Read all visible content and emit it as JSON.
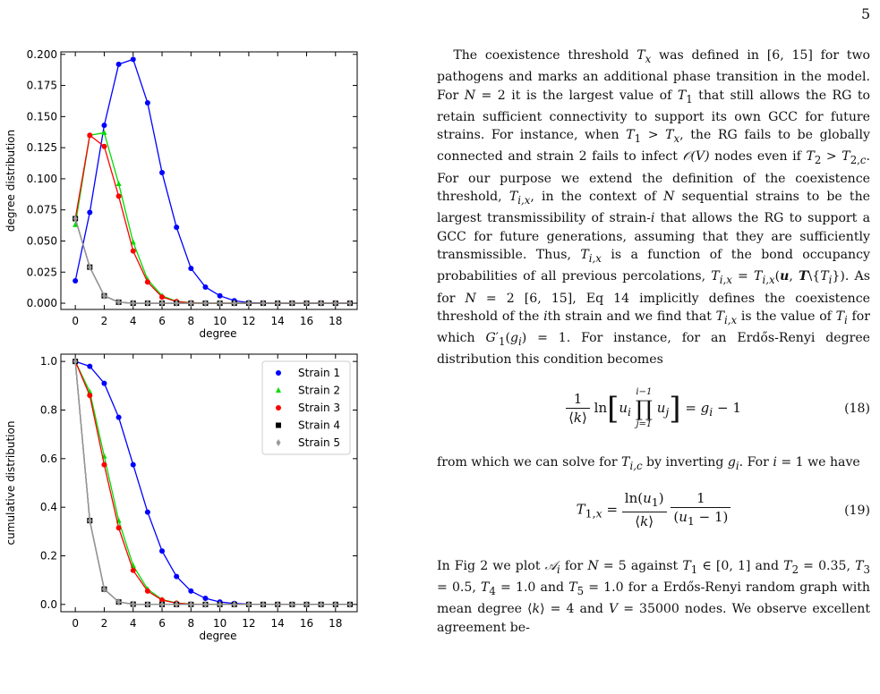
{
  "page": {
    "number": "5"
  },
  "chart_data": [
    {
      "type": "line",
      "xlabel": "degree",
      "ylabel": "degree distribution",
      "xlim": [
        -1,
        19.5
      ],
      "ylim": [
        -0.005,
        0.202
      ],
      "x_ticks": [
        0,
        2,
        4,
        6,
        8,
        10,
        12,
        14,
        16,
        18
      ],
      "y_ticks": [
        0.0,
        0.025,
        0.05,
        0.075,
        0.1,
        0.125,
        0.15,
        0.175,
        0.2
      ],
      "y_tick_labels": [
        "0.000",
        "0.025",
        "0.050",
        "0.075",
        "0.100",
        "0.125",
        "0.150",
        "0.175",
        "0.200"
      ],
      "grid": false,
      "x": [
        0,
        1,
        2,
        3,
        4,
        5,
        6,
        7,
        8,
        9,
        10,
        11,
        12,
        13,
        14,
        15,
        16,
        17,
        18,
        19
      ],
      "series": [
        {
          "name": "Strain 1",
          "color": "#0000ff",
          "marker": "circle",
          "values": [
            0.018,
            0.073,
            0.143,
            0.192,
            0.196,
            0.161,
            0.105,
            0.061,
            0.028,
            0.013,
            0.006,
            0.002,
            0.0005,
            0.0002,
            0,
            0,
            0,
            0,
            0,
            0
          ]
        },
        {
          "name": "Strain 2",
          "color": "#00dd00",
          "marker": "triangle",
          "values": [
            0.063,
            0.135,
            0.137,
            0.096,
            0.049,
            0.019,
            0.006,
            0.0015,
            0.0004,
            0,
            0,
            0,
            0,
            0,
            0,
            0,
            0,
            0,
            0,
            0
          ]
        },
        {
          "name": "Strain 3",
          "color": "#ff0000",
          "marker": "circle",
          "values": [
            0.068,
            0.135,
            0.126,
            0.086,
            0.042,
            0.017,
            0.005,
            0.0013,
            0.0003,
            0,
            0,
            0,
            0,
            0,
            0,
            0,
            0,
            0,
            0,
            0
          ]
        },
        {
          "name": "Strain 4",
          "color": "#000000",
          "marker": "square",
          "values": [
            0.068,
            0.029,
            0.006,
            0.0008,
            0,
            0,
            0,
            0,
            0,
            0,
            0,
            0,
            0,
            0,
            0,
            0,
            0,
            0,
            0,
            0
          ]
        },
        {
          "name": "Strain 5",
          "color": "#999999",
          "marker": "diamond",
          "values": [
            0.068,
            0.029,
            0.006,
            0.0008,
            0,
            0,
            0,
            0,
            0,
            0,
            0,
            0,
            0,
            0,
            0,
            0,
            0,
            0,
            0,
            0
          ]
        }
      ]
    },
    {
      "type": "line",
      "xlabel": "degree",
      "ylabel": "cumulative distribution",
      "xlim": [
        -1,
        19.5
      ],
      "ylim": [
        -0.03,
        1.03
      ],
      "x_ticks": [
        0,
        2,
        4,
        6,
        8,
        10,
        12,
        14,
        16,
        18
      ],
      "y_ticks": [
        0.0,
        0.2,
        0.4,
        0.6,
        0.8,
        1.0
      ],
      "y_tick_labels": [
        "0.0",
        "0.2",
        "0.4",
        "0.6",
        "0.8",
        "1.0"
      ],
      "grid": false,
      "legend_position": "top-right",
      "x": [
        0,
        1,
        2,
        3,
        4,
        5,
        6,
        7,
        8,
        9,
        10,
        11,
        12,
        13,
        14,
        15,
        16,
        17,
        18,
        19
      ],
      "series": [
        {
          "name": "Strain 1",
          "color": "#0000ff",
          "marker": "circle",
          "values": [
            1.0,
            0.98,
            0.91,
            0.77,
            0.575,
            0.38,
            0.22,
            0.115,
            0.055,
            0.025,
            0.01,
            0.004,
            0.001,
            0,
            0,
            0,
            0,
            0,
            0,
            0
          ]
        },
        {
          "name": "Strain 2",
          "color": "#00dd00",
          "marker": "triangle",
          "values": [
            1.0,
            0.875,
            0.61,
            0.345,
            0.16,
            0.063,
            0.02,
            0.006,
            0.0015,
            0,
            0,
            0,
            0,
            0,
            0,
            0,
            0,
            0,
            0,
            0
          ]
        },
        {
          "name": "Strain 3",
          "color": "#ff0000",
          "marker": "circle",
          "values": [
            1.0,
            0.86,
            0.575,
            0.315,
            0.14,
            0.055,
            0.018,
            0.005,
            0.001,
            0,
            0,
            0,
            0,
            0,
            0,
            0,
            0,
            0,
            0,
            0
          ]
        },
        {
          "name": "Strain 4",
          "color": "#000000",
          "marker": "square",
          "values": [
            1.0,
            0.345,
            0.063,
            0.01,
            0.001,
            0,
            0,
            0,
            0,
            0,
            0,
            0,
            0,
            0,
            0,
            0,
            0,
            0,
            0,
            0
          ]
        },
        {
          "name": "Strain 5",
          "color": "#999999",
          "marker": "diamond",
          "values": [
            1.0,
            0.345,
            0.063,
            0.01,
            0.001,
            0,
            0,
            0,
            0,
            0,
            0,
            0,
            0,
            0,
            0,
            0,
            0,
            0,
            0,
            0
          ]
        }
      ]
    }
  ],
  "text": {
    "p1_a": "The coexistence threshold ",
    "p1_b": " was defined in [6, 15] for two pathogens and marks an additional phase transition in the model. For ",
    "p1_c": " it is the largest value of ",
    "p1_d": " that still allows the RG to retain sufficient connectivity to support its own GCC for future strains. For instance, when ",
    "p1_e": ", the RG fails to be globally connected and strain 2 fails to infect ",
    "p1_f": " nodes even if ",
    "p1_g": ". For our purpose we extend the definition of the coexistence threshold, ",
    "p1_h": ", in the context of ",
    "p1_i": " sequential strains to be the largest transmissibility of strain-",
    "p1_j": " that allows the RG to support a GCC for future generations, assuming that they are sufficiently transmissible. Thus, ",
    "p1_k": " is a function of the bond occupancy probabilities of all previous percolations, ",
    "p1_l": ". As for ",
    "p1_m": " [6, 15], Eq 14 implicitly defines the coexistence threshold of the ",
    "p1_n": "th strain and we find that ",
    "p1_o": " is the value of ",
    "p1_p": " for which ",
    "p1_q": ". For instance, for an Erdős-Renyi degree distribution this condition becomes",
    "eq18_number": "(18)",
    "p2_a": "from which we can solve for ",
    "p2_b": " by inverting ",
    "p2_c": ". For ",
    "p2_d": " we have",
    "eq19_number": "(19)",
    "p3_a": "In Fig 2 we plot ",
    "p3_b": " for ",
    "p3_c": " against ",
    "p3_d": " and ",
    "p3_e": " for a Erdős-Renyi random graph with mean degree ",
    "p3_f": " and ",
    "p3_g": " nodes. We observe excellent agreement be-"
  }
}
